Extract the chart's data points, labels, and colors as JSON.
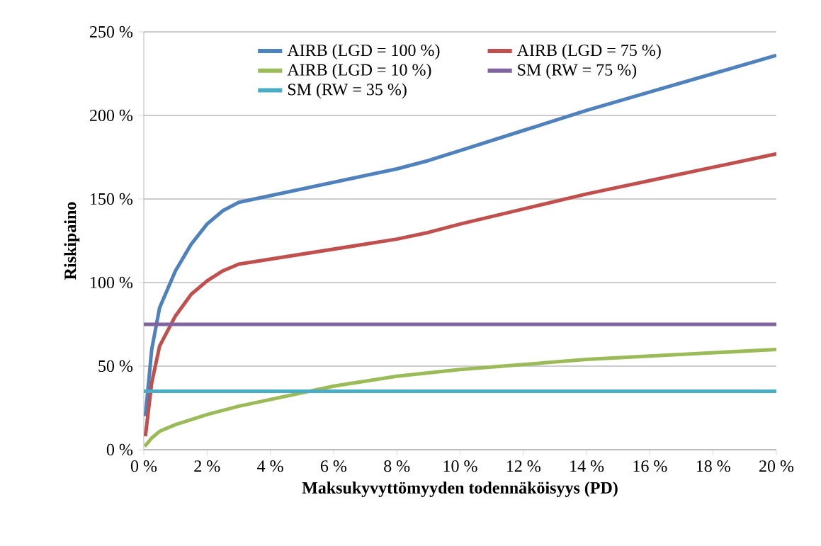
{
  "chart_data": {
    "type": "line",
    "xlabel": "Maksukyvyttömyyden todennäköisyys (PD)",
    "ylabel": "Riskipaino",
    "xlim": [
      0,
      20
    ],
    "ylim": [
      0,
      250
    ],
    "xticks": [
      {
        "value": 0,
        "label": "0 %"
      },
      {
        "value": 2,
        "label": "2 %"
      },
      {
        "value": 4,
        "label": "4 %"
      },
      {
        "value": 6,
        "label": "6 %"
      },
      {
        "value": 8,
        "label": "8 %"
      },
      {
        "value": 10,
        "label": "10 %"
      },
      {
        "value": 12,
        "label": "12 %"
      },
      {
        "value": 14,
        "label": "14 %"
      },
      {
        "value": 16,
        "label": "16 %"
      },
      {
        "value": 18,
        "label": "18 %"
      },
      {
        "value": 20,
        "label": "20 %"
      }
    ],
    "yticks": [
      {
        "value": 0,
        "label": "0 %"
      },
      {
        "value": 50,
        "label": "50 %"
      },
      {
        "value": 100,
        "label": "100 %"
      },
      {
        "value": 150,
        "label": "150 %"
      },
      {
        "value": 200,
        "label": "200 %"
      },
      {
        "value": 250,
        "label": "250 %"
      }
    ],
    "grid": "y",
    "legend": "top",
    "line_style": "solid",
    "series": [
      {
        "name": "AIRB (LGD = 100 %)",
        "color": "#4f81bd",
        "x": [
          0.05,
          0.25,
          0.5,
          1,
          1.5,
          2,
          2.5,
          3,
          4,
          5,
          6,
          7,
          8,
          9,
          10,
          12,
          14,
          16,
          18,
          20
        ],
        "values": [
          20,
          60,
          85,
          107,
          123,
          135,
          143,
          148,
          152,
          156,
          160,
          164,
          168,
          173,
          179,
          191,
          203,
          214,
          225,
          236
        ]
      },
      {
        "name": "AIRB (LGD = 75 %)",
        "color": "#c0504d",
        "x": [
          0.05,
          0.25,
          0.5,
          1,
          1.5,
          2,
          2.5,
          3,
          4,
          5,
          6,
          7,
          8,
          9,
          10,
          12,
          14,
          16,
          18,
          20
        ],
        "values": [
          8,
          40,
          62,
          80,
          93,
          101,
          107,
          111,
          114,
          117,
          120,
          123,
          126,
          130,
          135,
          144,
          153,
          161,
          169,
          177
        ]
      },
      {
        "name": "AIRB (LGD = 10 %)",
        "color": "#9bbb59",
        "x": [
          0.03,
          0.25,
          0.5,
          1,
          2,
          3,
          4,
          5,
          6,
          8,
          10,
          12,
          14,
          16,
          18,
          20
        ],
        "values": [
          2,
          7,
          11,
          15,
          21,
          26,
          30,
          34,
          38,
          44,
          48,
          51,
          54,
          56,
          58,
          60
        ]
      },
      {
        "name": "SM (RW = 75 %)",
        "color": "#8064a2",
        "x": [
          0,
          20
        ],
        "values": [
          75,
          75
        ]
      },
      {
        "name": "SM (RW = 35 %)",
        "color": "#4bacc6",
        "x": [
          0,
          20
        ],
        "values": [
          35,
          35
        ]
      }
    ]
  }
}
